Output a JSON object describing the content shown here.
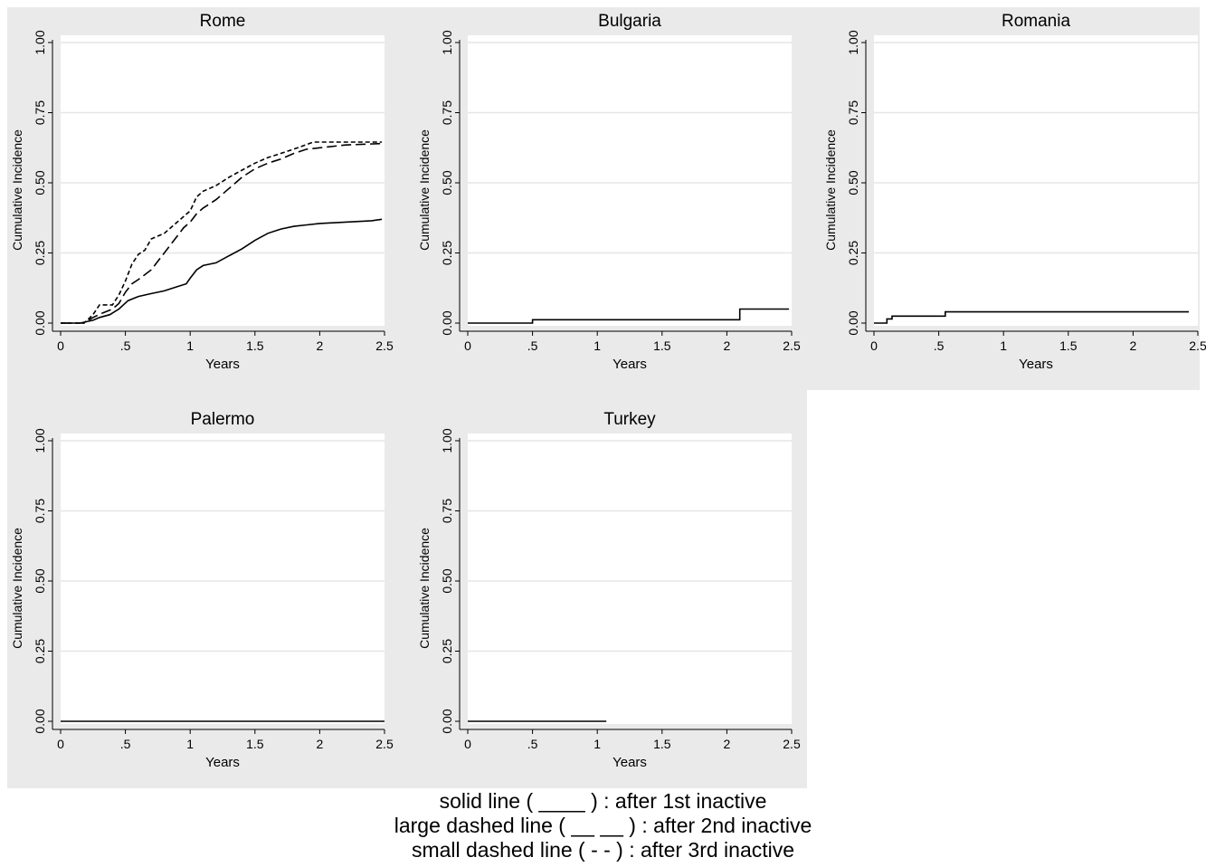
{
  "chart_data": [
    {
      "type": "line",
      "title": "Rome",
      "xlabel": "Years",
      "ylabel": "Cumulative Incidence",
      "xlim": [
        0,
        2.5
      ],
      "ylim": [
        0,
        1
      ],
      "x_ticks": [
        "0",
        ".5",
        "1",
        "1.5",
        "2",
        "2.5"
      ],
      "y_ticks": [
        "0.00",
        "0.25",
        "0.50",
        "0.75",
        "1.00"
      ],
      "grid": true,
      "series": [
        {
          "style": "solid",
          "x": [
            0,
            0.15,
            0.25,
            0.3,
            0.38,
            0.45,
            0.52,
            0.6,
            0.7,
            0.8,
            0.9,
            0.97,
            1.0,
            1.05,
            1.1,
            1.15,
            1.2,
            1.3,
            1.4,
            1.5,
            1.6,
            1.7,
            1.8,
            1.9,
            2.0,
            2.2,
            2.4,
            2.48
          ],
          "y": [
            0,
            0,
            0.01,
            0.02,
            0.03,
            0.05,
            0.08,
            0.095,
            0.105,
            0.115,
            0.13,
            0.14,
            0.16,
            0.19,
            0.205,
            0.21,
            0.215,
            0.24,
            0.265,
            0.295,
            0.32,
            0.335,
            0.345,
            0.35,
            0.355,
            0.36,
            0.365,
            0.37
          ]
        },
        {
          "style": "long-dash",
          "x": [
            0,
            0.18,
            0.25,
            0.32,
            0.4,
            0.45,
            0.5,
            0.55,
            0.6,
            0.7,
            0.75,
            0.8,
            0.9,
            0.95,
            1.0,
            1.05,
            1.1,
            1.2,
            1.3,
            1.4,
            1.5,
            1.6,
            1.7,
            1.8,
            1.9,
            2.0,
            2.2,
            2.48
          ],
          "y": [
            0,
            0,
            0.02,
            0.035,
            0.05,
            0.07,
            0.11,
            0.14,
            0.155,
            0.19,
            0.22,
            0.25,
            0.31,
            0.34,
            0.36,
            0.39,
            0.41,
            0.44,
            0.48,
            0.52,
            0.55,
            0.57,
            0.585,
            0.605,
            0.62,
            0.625,
            0.635,
            0.64
          ]
        },
        {
          "style": "short-dash",
          "x": [
            0,
            0.18,
            0.25,
            0.3,
            0.35,
            0.4,
            0.45,
            0.5,
            0.55,
            0.6,
            0.65,
            0.7,
            0.75,
            0.8,
            0.9,
            1.0,
            1.05,
            1.1,
            1.15,
            1.2,
            1.3,
            1.4,
            1.5,
            1.6,
            1.7,
            1.8,
            1.95,
            2.48
          ],
          "y": [
            0,
            0,
            0.03,
            0.065,
            0.065,
            0.065,
            0.1,
            0.15,
            0.21,
            0.245,
            0.26,
            0.3,
            0.31,
            0.32,
            0.36,
            0.4,
            0.45,
            0.47,
            0.48,
            0.49,
            0.52,
            0.545,
            0.57,
            0.59,
            0.605,
            0.62,
            0.645,
            0.645
          ]
        }
      ]
    },
    {
      "type": "line",
      "title": "Bulgaria",
      "xlabel": "Years",
      "ylabel": "Cumulative Incidence",
      "xlim": [
        0,
        2.5
      ],
      "ylim": [
        0,
        1
      ],
      "x_ticks": [
        "0",
        ".5",
        "1",
        "1.5",
        "2",
        "2.5"
      ],
      "y_ticks": [
        "0.00",
        "0.25",
        "0.50",
        "0.75",
        "1.00"
      ],
      "grid": true,
      "series": [
        {
          "style": "solid",
          "x": [
            0,
            0.5,
            0.5,
            2.1,
            2.1,
            2.48
          ],
          "y": [
            0,
            0,
            0.012,
            0.012,
            0.05,
            0.05
          ]
        }
      ]
    },
    {
      "type": "line",
      "title": "Romania",
      "xlabel": "Years",
      "ylabel": "Cumulative Incidence",
      "xlim": [
        0,
        2.5
      ],
      "ylim": [
        0,
        1
      ],
      "x_ticks": [
        "0",
        ".5",
        "1",
        "1.5",
        "2",
        "2.5"
      ],
      "y_ticks": [
        "0.00",
        "0.25",
        "0.50",
        "0.75",
        "1.00"
      ],
      "grid": true,
      "series": [
        {
          "style": "solid",
          "x": [
            0,
            0.1,
            0.1,
            0.14,
            0.14,
            0.55,
            0.55,
            2.43
          ],
          "y": [
            0,
            0,
            0.015,
            0.015,
            0.025,
            0.025,
            0.04,
            0.04
          ]
        }
      ]
    },
    {
      "type": "line",
      "title": "Palermo",
      "xlabel": "Years",
      "ylabel": "Cumulative Incidence",
      "xlim": [
        0,
        2.5
      ],
      "ylim": [
        0,
        1
      ],
      "x_ticks": [
        "0",
        ".5",
        "1",
        "1.5",
        "2",
        "2.5"
      ],
      "y_ticks": [
        "0.00",
        "0.25",
        "0.50",
        "0.75",
        "1.00"
      ],
      "grid": true,
      "series": [
        {
          "style": "solid",
          "x": [
            0,
            2.5
          ],
          "y": [
            0,
            0
          ]
        }
      ]
    },
    {
      "type": "line",
      "title": "Turkey",
      "xlabel": "Years",
      "ylabel": "Cumulative Incidence",
      "xlim": [
        0,
        2.5
      ],
      "ylim": [
        0,
        1
      ],
      "x_ticks": [
        "0",
        ".5",
        "1",
        "1.5",
        "2",
        "2.5"
      ],
      "y_ticks": [
        "0.00",
        "0.25",
        "0.50",
        "0.75",
        "1.00"
      ],
      "grid": true,
      "series": [
        {
          "style": "solid",
          "x": [
            0,
            1.07
          ],
          "y": [
            0,
            0
          ]
        }
      ]
    }
  ],
  "legend": {
    "line1": "solid line ( ____ ) : after 1st inactive",
    "line2": "large dashed line ( __ __ ) : after 2nd inactive",
    "line3": "small dashed line ( - - ) : after 3rd inactive"
  }
}
